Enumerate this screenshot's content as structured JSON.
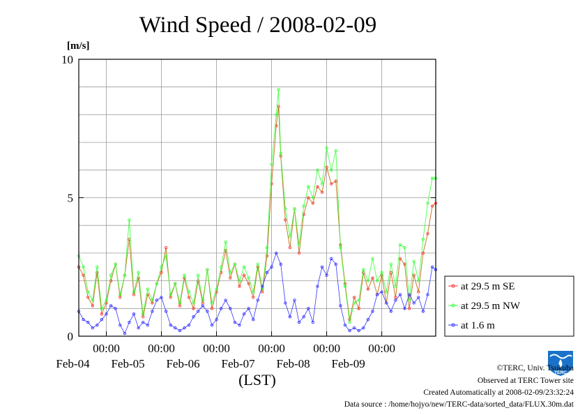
{
  "chart_data": {
    "type": "line",
    "title": "Wind Speed / 2008-02-09",
    "ylabel": "[m/s]",
    "xlabel": "(LST)",
    "ylim": [
      0,
      10
    ],
    "yticks": [
      "0",
      "5",
      "10"
    ],
    "xlim": [
      "2008-02-03 12:00",
      "2008-02-09 23:30"
    ],
    "xticks": [
      {
        "time": "00:00",
        "date": "Feb-04"
      },
      {
        "time": "00:00",
        "date": "Feb-05"
      },
      {
        "time": "00:00",
        "date": "Feb-06"
      },
      {
        "time": "00:00",
        "date": "Feb-07"
      },
      {
        "time": "00:00",
        "date": "Feb-08"
      },
      {
        "time": "00:00",
        "date": "Feb-09"
      }
    ],
    "grid": true,
    "legend_position": "right",
    "series": [
      {
        "name": "at 29.5 m SE",
        "color": "#ff3030",
        "points": [
          [
            "2008-02-03 12:00",
            2.5
          ],
          [
            "2008-02-03 14:00",
            2.2
          ],
          [
            "2008-02-03 16:00",
            1.4
          ],
          [
            "2008-02-03 18:00",
            1.1
          ],
          [
            "2008-02-03 20:00",
            2.3
          ],
          [
            "2008-02-03 22:00",
            0.8
          ],
          [
            "2008-02-04 00:00",
            1.2
          ],
          [
            "2008-02-04 02:00",
            2.0
          ],
          [
            "2008-02-04 04:00",
            2.6
          ],
          [
            "2008-02-04 06:00",
            1.4
          ],
          [
            "2008-02-04 08:00",
            2.2
          ],
          [
            "2008-02-04 10:00",
            3.5
          ],
          [
            "2008-02-04 12:00",
            1.5
          ],
          [
            "2008-02-04 14:00",
            2.1
          ],
          [
            "2008-02-04 16:00",
            0.7
          ],
          [
            "2008-02-04 18:00",
            1.5
          ],
          [
            "2008-02-04 20:00",
            1.2
          ],
          [
            "2008-02-04 22:00",
            1.9
          ],
          [
            "2008-02-05 00:00",
            2.3
          ],
          [
            "2008-02-05 02:00",
            3.2
          ],
          [
            "2008-02-05 04:00",
            1.4
          ],
          [
            "2008-02-05 06:00",
            1.9
          ],
          [
            "2008-02-05 08:00",
            1.1
          ],
          [
            "2008-02-05 10:00",
            2.1
          ],
          [
            "2008-02-05 12:00",
            1.4
          ],
          [
            "2008-02-05 14:00",
            1.0
          ],
          [
            "2008-02-05 16:00",
            2.0
          ],
          [
            "2008-02-05 18:00",
            1.2
          ],
          [
            "2008-02-05 20:00",
            2.4
          ],
          [
            "2008-02-05 22:00",
            1.0
          ],
          [
            "2008-02-06 00:00",
            1.6
          ],
          [
            "2008-02-06 02:00",
            2.3
          ],
          [
            "2008-02-06 04:00",
            3.1
          ],
          [
            "2008-02-06 06:00",
            2.1
          ],
          [
            "2008-02-06 08:00",
            2.6
          ],
          [
            "2008-02-06 10:00",
            1.8
          ],
          [
            "2008-02-06 12:00",
            2.2
          ],
          [
            "2008-02-06 14:00",
            1.9
          ],
          [
            "2008-02-06 16:00",
            1.4
          ],
          [
            "2008-02-06 18:00",
            2.5
          ],
          [
            "2008-02-06 20:00",
            1.6
          ],
          [
            "2008-02-06 22:00",
            2.9
          ],
          [
            "2008-02-07 00:00",
            5.5
          ],
          [
            "2008-02-07 02:00",
            7.6
          ],
          [
            "2008-02-07 03:00",
            8.3
          ],
          [
            "2008-02-07 04:00",
            6.5
          ],
          [
            "2008-02-07 06:00",
            4.2
          ],
          [
            "2008-02-07 08:00",
            3.2
          ],
          [
            "2008-02-07 10:00",
            4.6
          ],
          [
            "2008-02-07 12:00",
            3.0
          ],
          [
            "2008-02-07 14:00",
            4.4
          ],
          [
            "2008-02-07 16:00",
            5.0
          ],
          [
            "2008-02-07 18:00",
            4.8
          ],
          [
            "2008-02-07 20:00",
            5.4
          ],
          [
            "2008-02-07 22:00",
            5.2
          ],
          [
            "2008-02-08 00:00",
            6.1
          ],
          [
            "2008-02-08 02:00",
            5.5
          ],
          [
            "2008-02-08 04:00",
            5.6
          ],
          [
            "2008-02-08 06:00",
            3.3
          ],
          [
            "2008-02-08 08:00",
            1.9
          ],
          [
            "2008-02-08 10:00",
            0.6
          ],
          [
            "2008-02-08 12:00",
            1.4
          ],
          [
            "2008-02-08 14:00",
            1.0
          ],
          [
            "2008-02-08 16:00",
            2.3
          ],
          [
            "2008-02-08 18:00",
            1.7
          ],
          [
            "2008-02-08 20:00",
            2.1
          ],
          [
            "2008-02-08 22:00",
            1.5
          ],
          [
            "2008-02-09 00:00",
            2.2
          ],
          [
            "2008-02-09 02:00",
            1.2
          ],
          [
            "2008-02-09 04:00",
            2.3
          ],
          [
            "2008-02-09 06:00",
            1.4
          ],
          [
            "2008-02-09 08:00",
            2.8
          ],
          [
            "2008-02-09 10:00",
            2.6
          ],
          [
            "2008-02-09 12:00",
            1.0
          ],
          [
            "2008-02-09 14:00",
            2.2
          ],
          [
            "2008-02-09 16:00",
            1.6
          ],
          [
            "2008-02-09 18:00",
            3.0
          ],
          [
            "2008-02-09 20:00",
            3.7
          ],
          [
            "2008-02-09 22:00",
            4.7
          ],
          [
            "2008-02-09 23:30",
            4.8
          ]
        ]
      },
      {
        "name": "at 29.5 m NW",
        "color": "#33ff33",
        "points": [
          [
            "2008-02-03 12:00",
            2.9
          ],
          [
            "2008-02-03 14:00",
            2.5
          ],
          [
            "2008-02-03 16:00",
            1.6
          ],
          [
            "2008-02-03 18:00",
            1.3
          ],
          [
            "2008-02-03 20:00",
            2.5
          ],
          [
            "2008-02-03 22:00",
            1.0
          ],
          [
            "2008-02-04 00:00",
            1.3
          ],
          [
            "2008-02-04 02:00",
            2.2
          ],
          [
            "2008-02-04 04:00",
            2.6
          ],
          [
            "2008-02-04 06:00",
            1.5
          ],
          [
            "2008-02-04 08:00",
            2.2
          ],
          [
            "2008-02-04 10:00",
            4.2
          ],
          [
            "2008-02-04 12:00",
            1.6
          ],
          [
            "2008-02-04 14:00",
            2.3
          ],
          [
            "2008-02-04 16:00",
            0.8
          ],
          [
            "2008-02-04 18:00",
            1.7
          ],
          [
            "2008-02-04 20:00",
            1.3
          ],
          [
            "2008-02-04 22:00",
            1.9
          ],
          [
            "2008-02-05 00:00",
            2.5
          ],
          [
            "2008-02-05 02:00",
            2.9
          ],
          [
            "2008-02-05 04:00",
            1.5
          ],
          [
            "2008-02-05 06:00",
            1.9
          ],
          [
            "2008-02-05 08:00",
            1.2
          ],
          [
            "2008-02-05 10:00",
            2.2
          ],
          [
            "2008-02-05 12:00",
            1.6
          ],
          [
            "2008-02-05 14:00",
            1.2
          ],
          [
            "2008-02-05 16:00",
            2.2
          ],
          [
            "2008-02-05 18:00",
            1.3
          ],
          [
            "2008-02-05 20:00",
            2.4
          ],
          [
            "2008-02-05 22:00",
            1.2
          ],
          [
            "2008-02-06 00:00",
            1.7
          ],
          [
            "2008-02-06 02:00",
            2.5
          ],
          [
            "2008-02-06 04:00",
            3.4
          ],
          [
            "2008-02-06 06:00",
            2.3
          ],
          [
            "2008-02-06 08:00",
            2.6
          ],
          [
            "2008-02-06 10:00",
            2.0
          ],
          [
            "2008-02-06 12:00",
            2.5
          ],
          [
            "2008-02-06 14:00",
            2.1
          ],
          [
            "2008-02-06 16:00",
            1.6
          ],
          [
            "2008-02-06 18:00",
            2.6
          ],
          [
            "2008-02-06 20:00",
            1.7
          ],
          [
            "2008-02-06 22:00",
            3.2
          ],
          [
            "2008-02-07 00:00",
            6.2
          ],
          [
            "2008-02-07 02:00",
            8.0
          ],
          [
            "2008-02-07 03:00",
            8.9
          ],
          [
            "2008-02-07 04:00",
            6.6
          ],
          [
            "2008-02-07 06:00",
            4.6
          ],
          [
            "2008-02-07 08:00",
            3.6
          ],
          [
            "2008-02-07 10:00",
            4.6
          ],
          [
            "2008-02-07 12:00",
            3.3
          ],
          [
            "2008-02-07 14:00",
            4.7
          ],
          [
            "2008-02-07 16:00",
            5.4
          ],
          [
            "2008-02-07 18:00",
            5.0
          ],
          [
            "2008-02-07 20:00",
            6.0
          ],
          [
            "2008-02-07 22:00",
            5.5
          ],
          [
            "2008-02-08 00:00",
            6.8
          ],
          [
            "2008-02-08 02:00",
            6.0
          ],
          [
            "2008-02-08 04:00",
            6.7
          ],
          [
            "2008-02-08 06:00",
            3.2
          ],
          [
            "2008-02-08 08:00",
            1.8
          ],
          [
            "2008-02-08 10:00",
            0.5
          ],
          [
            "2008-02-08 12:00",
            1.2
          ],
          [
            "2008-02-08 14:00",
            1.3
          ],
          [
            "2008-02-08 16:00",
            2.4
          ],
          [
            "2008-02-08 18:00",
            2.0
          ],
          [
            "2008-02-08 20:00",
            2.8
          ],
          [
            "2008-02-08 22:00",
            2.0
          ],
          [
            "2008-02-09 00:00",
            2.3
          ],
          [
            "2008-02-09 02:00",
            1.6
          ],
          [
            "2008-02-09 04:00",
            2.6
          ],
          [
            "2008-02-09 06:00",
            1.8
          ],
          [
            "2008-02-09 08:00",
            3.3
          ],
          [
            "2008-02-09 10:00",
            3.2
          ],
          [
            "2008-02-09 12:00",
            1.3
          ],
          [
            "2008-02-09 14:00",
            2.7
          ],
          [
            "2008-02-09 16:00",
            2.0
          ],
          [
            "2008-02-09 18:00",
            3.5
          ],
          [
            "2008-02-09 20:00",
            4.8
          ],
          [
            "2008-02-09 22:00",
            5.7
          ],
          [
            "2008-02-09 23:30",
            5.7
          ]
        ]
      },
      {
        "name": "at 1.6 m",
        "color": "#3333ff",
        "points": [
          [
            "2008-02-03 12:00",
            0.9
          ],
          [
            "2008-02-03 14:00",
            0.6
          ],
          [
            "2008-02-03 16:00",
            0.5
          ],
          [
            "2008-02-03 18:00",
            0.3
          ],
          [
            "2008-02-03 20:00",
            0.4
          ],
          [
            "2008-02-03 22:00",
            0.6
          ],
          [
            "2008-02-04 00:00",
            0.8
          ],
          [
            "2008-02-04 02:00",
            1.1
          ],
          [
            "2008-02-04 04:00",
            1.0
          ],
          [
            "2008-02-04 06:00",
            0.4
          ],
          [
            "2008-02-04 08:00",
            0.1
          ],
          [
            "2008-02-04 10:00",
            0.5
          ],
          [
            "2008-02-04 12:00",
            0.8
          ],
          [
            "2008-02-04 14:00",
            0.3
          ],
          [
            "2008-02-04 16:00",
            0.5
          ],
          [
            "2008-02-04 18:00",
            0.4
          ],
          [
            "2008-02-04 20:00",
            0.9
          ],
          [
            "2008-02-04 22:00",
            1.3
          ],
          [
            "2008-02-05 00:00",
            1.4
          ],
          [
            "2008-02-05 02:00",
            0.9
          ],
          [
            "2008-02-05 04:00",
            0.4
          ],
          [
            "2008-02-05 06:00",
            0.3
          ],
          [
            "2008-02-05 08:00",
            0.2
          ],
          [
            "2008-02-05 10:00",
            0.3
          ],
          [
            "2008-02-05 12:00",
            0.4
          ],
          [
            "2008-02-05 14:00",
            0.7
          ],
          [
            "2008-02-05 16:00",
            0.9
          ],
          [
            "2008-02-05 18:00",
            1.1
          ],
          [
            "2008-02-05 20:00",
            0.9
          ],
          [
            "2008-02-05 22:00",
            0.4
          ],
          [
            "2008-02-06 00:00",
            0.6
          ],
          [
            "2008-02-06 02:00",
            1.0
          ],
          [
            "2008-02-06 04:00",
            1.3
          ],
          [
            "2008-02-06 06:00",
            1.0
          ],
          [
            "2008-02-06 08:00",
            0.5
          ],
          [
            "2008-02-06 10:00",
            0.4
          ],
          [
            "2008-02-06 12:00",
            0.8
          ],
          [
            "2008-02-06 14:00",
            1.0
          ],
          [
            "2008-02-06 16:00",
            0.6
          ],
          [
            "2008-02-06 18:00",
            1.3
          ],
          [
            "2008-02-06 20:00",
            1.8
          ],
          [
            "2008-02-06 22:00",
            2.3
          ],
          [
            "2008-02-07 00:00",
            2.5
          ],
          [
            "2008-02-07 02:00",
            3.0
          ],
          [
            "2008-02-07 04:00",
            2.6
          ],
          [
            "2008-02-07 06:00",
            1.2
          ],
          [
            "2008-02-07 08:00",
            0.7
          ],
          [
            "2008-02-07 10:00",
            1.3
          ],
          [
            "2008-02-07 12:00",
            0.5
          ],
          [
            "2008-02-07 14:00",
            0.7
          ],
          [
            "2008-02-07 16:00",
            1.0
          ],
          [
            "2008-02-07 18:00",
            0.5
          ],
          [
            "2008-02-07 20:00",
            1.8
          ],
          [
            "2008-02-07 22:00",
            2.5
          ],
          [
            "2008-02-08 00:00",
            2.2
          ],
          [
            "2008-02-08 02:00",
            2.8
          ],
          [
            "2008-02-08 04:00",
            2.6
          ],
          [
            "2008-02-08 06:00",
            1.1
          ],
          [
            "2008-02-08 08:00",
            0.4
          ],
          [
            "2008-02-08 10:00",
            0.2
          ],
          [
            "2008-02-08 12:00",
            0.3
          ],
          [
            "2008-02-08 14:00",
            0.2
          ],
          [
            "2008-02-08 16:00",
            0.3
          ],
          [
            "2008-02-08 18:00",
            0.6
          ],
          [
            "2008-02-08 20:00",
            0.9
          ],
          [
            "2008-02-08 22:00",
            1.5
          ],
          [
            "2008-02-09 00:00",
            1.6
          ],
          [
            "2008-02-09 02:00",
            1.2
          ],
          [
            "2008-02-09 04:00",
            0.9
          ],
          [
            "2008-02-09 06:00",
            1.3
          ],
          [
            "2008-02-09 08:00",
            1.5
          ],
          [
            "2008-02-09 10:00",
            1.0
          ],
          [
            "2008-02-09 12:00",
            1.5
          ],
          [
            "2008-02-09 14:00",
            1.2
          ],
          [
            "2008-02-09 16:00",
            1.4
          ],
          [
            "2008-02-09 18:00",
            0.9
          ],
          [
            "2008-02-09 20:00",
            1.5
          ],
          [
            "2008-02-09 22:00",
            2.5
          ],
          [
            "2008-02-09 23:30",
            2.4
          ]
        ]
      }
    ]
  },
  "footer": {
    "copyright": "©TERC, Univ. Tsukuba",
    "observed": "Observed at TERC Tower site",
    "created": "Created Automatically at 2008-02-09/23:32:24",
    "source": "Data source : /home/hojyo/new/TERC-data/sorted_data/FLUX.30m.dat"
  },
  "logo": {
    "text": "TERC",
    "color": "#1a73c8"
  }
}
